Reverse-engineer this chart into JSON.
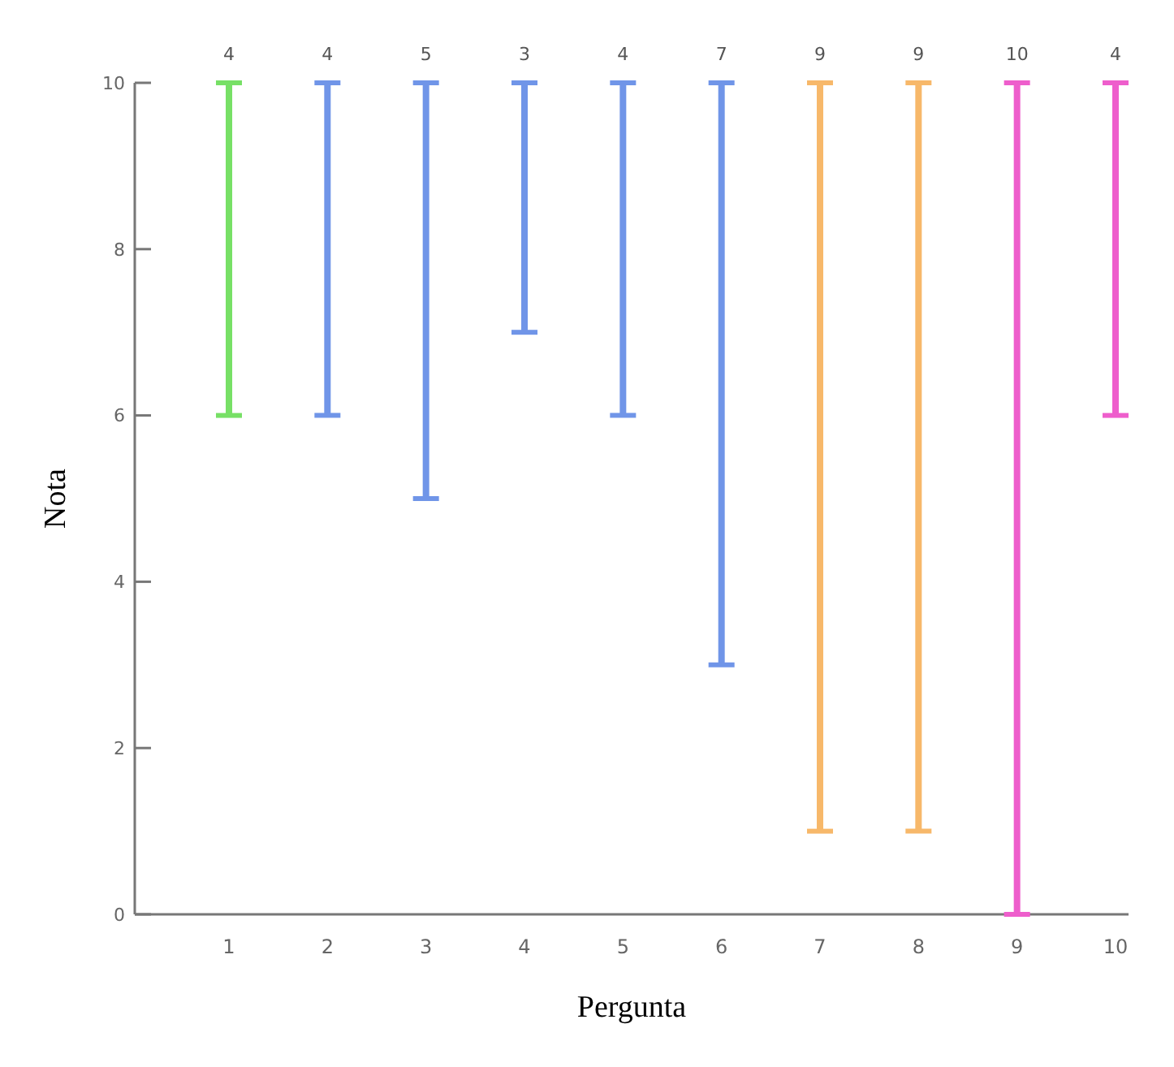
{
  "chart_data": {
    "type": "bar",
    "xlabel": "Pergunta",
    "ylabel": "Nota",
    "categories": [
      "1",
      "2",
      "3",
      "4",
      "5",
      "6",
      "7",
      "8",
      "9",
      "10"
    ],
    "base": [
      6,
      6,
      5,
      7,
      6,
      3,
      1,
      1,
      0,
      6
    ],
    "values": [
      4,
      4,
      5,
      3,
      4,
      7,
      9,
      9,
      10,
      4
    ],
    "colors": [
      "#77e066",
      "#7095e8",
      "#7095e8",
      "#7095e8",
      "#7095e8",
      "#7095e8",
      "#f7b86a",
      "#f7b86a",
      "#ee5ecc",
      "#ee5ecc"
    ],
    "ylim": [
      0,
      10
    ],
    "yticks": [
      0,
      2,
      4,
      6,
      8,
      10
    ],
    "data_labels": true,
    "grid": false
  }
}
